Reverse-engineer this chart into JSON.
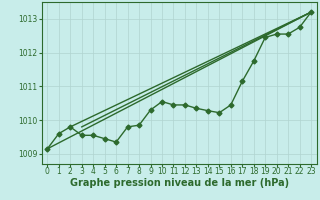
{
  "xlabel": "Graphe pression niveau de la mer (hPa)",
  "ylabel": "",
  "bg_color": "#c8edea",
  "grid_color": "#b0d4d0",
  "line_color": "#2d6a2d",
  "xlim": [
    -0.5,
    23.5
  ],
  "ylim": [
    1008.7,
    1013.5
  ],
  "yticks": [
    1009,
    1010,
    1011,
    1012,
    1013
  ],
  "xticks": [
    0,
    1,
    2,
    3,
    4,
    5,
    6,
    7,
    8,
    9,
    10,
    11,
    12,
    13,
    14,
    15,
    16,
    17,
    18,
    19,
    20,
    21,
    22,
    23
  ],
  "series1_x": [
    0,
    1,
    2,
    3,
    4,
    5,
    6,
    7,
    8,
    9,
    10,
    11,
    12,
    13,
    14,
    15,
    16,
    17,
    18,
    19,
    20,
    21,
    22,
    23
  ],
  "series1_y": [
    1009.15,
    1009.6,
    1009.8,
    1009.55,
    1009.55,
    1009.45,
    1009.35,
    1009.8,
    1009.85,
    1010.3,
    1010.55,
    1010.45,
    1010.45,
    1010.35,
    1010.28,
    1010.22,
    1010.45,
    1011.15,
    1011.75,
    1012.45,
    1012.55,
    1012.55,
    1012.75,
    1013.2
  ],
  "line2_x": [
    0,
    23
  ],
  "line2_y": [
    1009.15,
    1013.2
  ],
  "line3_x": [
    2,
    23
  ],
  "line3_y": [
    1009.8,
    1013.2
  ],
  "line4_x": [
    3,
    23
  ],
  "line4_y": [
    1009.8,
    1013.2
  ],
  "marker": "D",
  "marker_size": 2.5,
  "linewidth": 1.0,
  "xlabel_fontsize": 7,
  "tick_fontsize": 5.5,
  "xlabel_color": "#2d6a2d",
  "tick_color": "#2d6a2d",
  "spine_color": "#2d6a2d"
}
